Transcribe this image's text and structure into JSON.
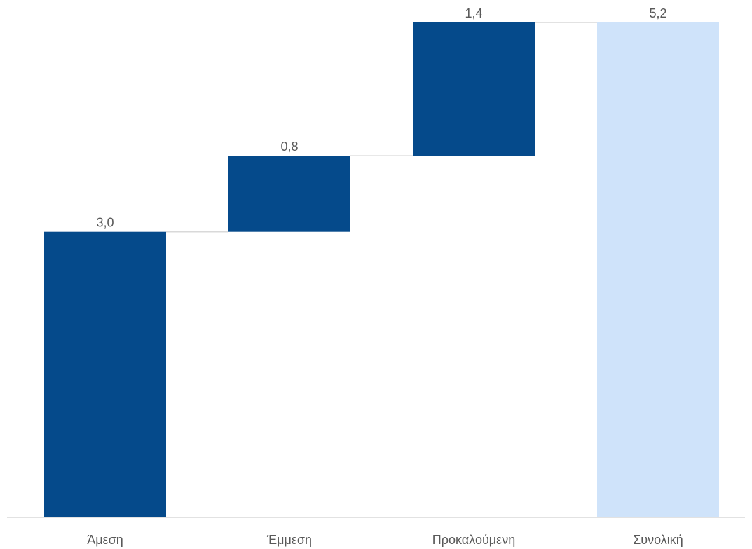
{
  "chart_data": {
    "type": "bar",
    "subtype": "waterfall",
    "title": "",
    "xlabel": "",
    "ylabel": "",
    "ylim": [
      0,
      5.2
    ],
    "grid": false,
    "legend": "none",
    "categories": [
      "Άμεση",
      "Έμμεση",
      "Προκαλούμενη",
      "Συνολική"
    ],
    "values": [
      3.0,
      0.8,
      1.4,
      5.2
    ],
    "value_labels": [
      "3,0",
      "0,8",
      "1,4",
      "5,2"
    ],
    "bar_kinds": [
      "increase",
      "increase",
      "increase",
      "total"
    ],
    "colors": {
      "increase": "#054a8b",
      "total": "#cfe3fa",
      "connector": "#d9d9d9",
      "axis": "#d9d9d9",
      "text": "#595959"
    }
  }
}
